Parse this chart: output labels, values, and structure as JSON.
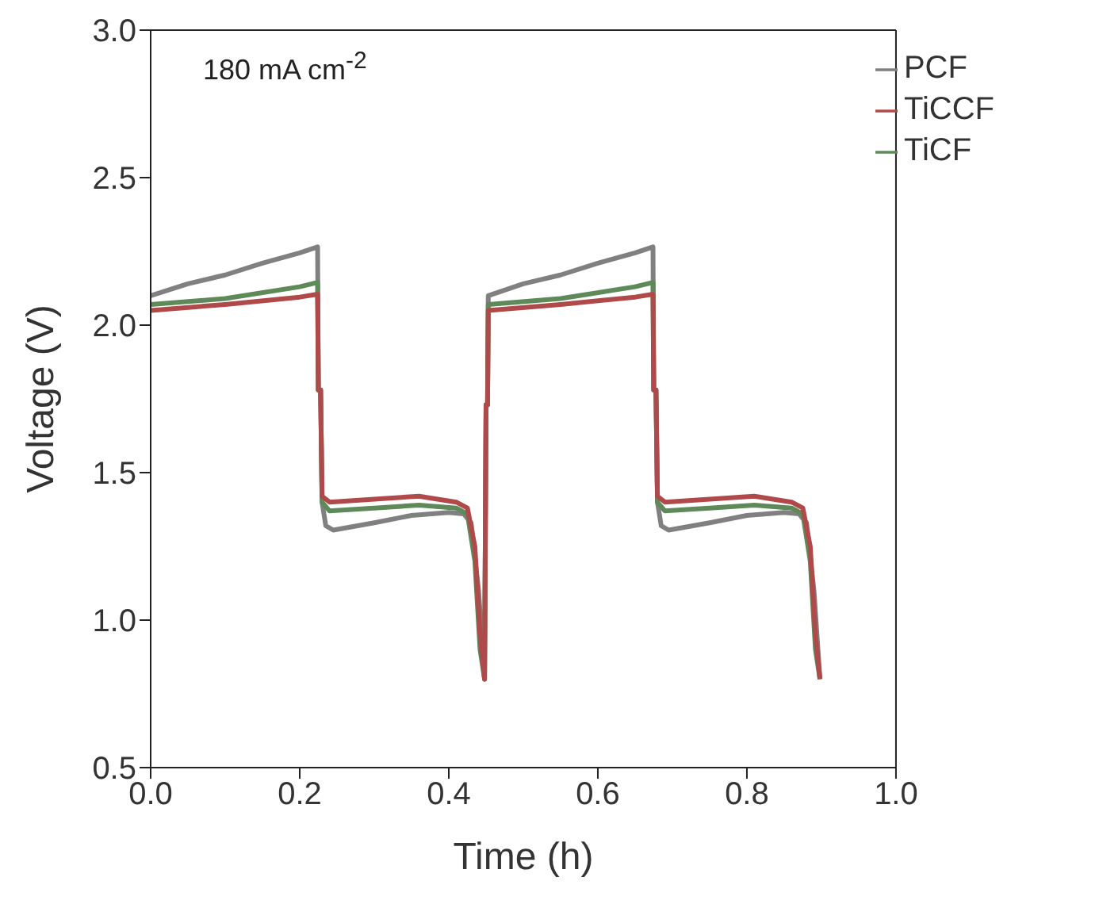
{
  "chart_data": {
    "type": "line",
    "xlabel": "Time (h)",
    "ylabel": "Voltage (V)",
    "annotations": [
      "180 mA cm$^{-2}$"
    ],
    "xlim": [
      0,
      1
    ],
    "xticks": [
      {
        "value": 0,
        "label": "0.0"
      },
      0.2,
      0.4,
      0.6,
      0.8,
      {
        "value": 1,
        "label": "1.0"
      }
    ],
    "ylim": [
      0.5,
      3
    ],
    "yticks": [
      0.5,
      {
        "value": 1,
        "label": "1.0"
      },
      1.5,
      {
        "value": 2,
        "label": "2.0"
      },
      2.5,
      {
        "value": 3,
        "label": "3.0"
      }
    ],
    "legend": "top right",
    "marker": "none",
    "line_style": "solid",
    "series": [
      {
        "name": "PCF",
        "color": "#808080",
        "x": [
          0,
          0.05,
          0.1,
          0.15,
          0.2,
          0.224,
          0.225,
          0.228,
          0.23,
          0.235,
          0.245,
          0.3,
          0.35,
          0.4,
          0.42,
          0.43,
          0.44,
          0.448,
          0.45,
          0.452,
          0.453,
          0.5,
          0.55,
          0.6,
          0.65,
          0.674,
          0.675,
          0.678,
          0.68,
          0.685,
          0.695,
          0.75,
          0.8,
          0.85,
          0.87,
          0.88,
          0.89,
          0.898
        ],
        "values": [
          2.1,
          2.14,
          2.17,
          2.21,
          2.245,
          2.265,
          1.78,
          1.78,
          1.4,
          1.32,
          1.305,
          1.33,
          1.355,
          1.365,
          1.36,
          1.33,
          1.1,
          0.8,
          1.73,
          1.73,
          2.1,
          2.14,
          2.17,
          2.21,
          2.245,
          2.265,
          1.78,
          1.78,
          1.4,
          1.32,
          1.305,
          1.33,
          1.355,
          1.365,
          1.36,
          1.33,
          1.1,
          0.8
        ]
      },
      {
        "name": "TiCF",
        "color": "#5e8a5a",
        "x": [
          0,
          0.1,
          0.2,
          0.224,
          0.225,
          0.228,
          0.23,
          0.24,
          0.3,
          0.36,
          0.41,
          0.425,
          0.435,
          0.442,
          0.448,
          0.45,
          0.452,
          0.453,
          0.55,
          0.65,
          0.674,
          0.675,
          0.678,
          0.68,
          0.69,
          0.75,
          0.81,
          0.86,
          0.875,
          0.885,
          0.892,
          0.898
        ],
        "values": [
          2.07,
          2.09,
          2.13,
          2.145,
          1.78,
          1.78,
          1.4,
          1.37,
          1.38,
          1.39,
          1.38,
          1.36,
          1.2,
          0.9,
          0.8,
          1.73,
          1.73,
          2.07,
          2.09,
          2.13,
          2.145,
          1.78,
          1.78,
          1.4,
          1.37,
          1.38,
          1.39,
          1.38,
          1.36,
          1.2,
          0.9,
          0.8
        ]
      },
      {
        "name": "TiCCF",
        "color": "#b04a4a",
        "x": [
          0,
          0.1,
          0.2,
          0.224,
          0.225,
          0.228,
          0.23,
          0.24,
          0.3,
          0.36,
          0.41,
          0.425,
          0.435,
          0.442,
          0.448,
          0.45,
          0.452,
          0.453,
          0.55,
          0.65,
          0.674,
          0.675,
          0.678,
          0.68,
          0.69,
          0.75,
          0.81,
          0.86,
          0.875,
          0.885,
          0.892,
          0.898
        ],
        "values": [
          2.05,
          2.07,
          2.095,
          2.105,
          1.78,
          1.78,
          1.42,
          1.4,
          1.41,
          1.42,
          1.4,
          1.38,
          1.25,
          0.95,
          0.8,
          1.73,
          1.73,
          2.05,
          2.07,
          2.095,
          2.105,
          1.78,
          1.78,
          1.42,
          1.4,
          1.41,
          1.42,
          1.4,
          1.38,
          1.25,
          0.95,
          0.8
        ]
      }
    ]
  }
}
